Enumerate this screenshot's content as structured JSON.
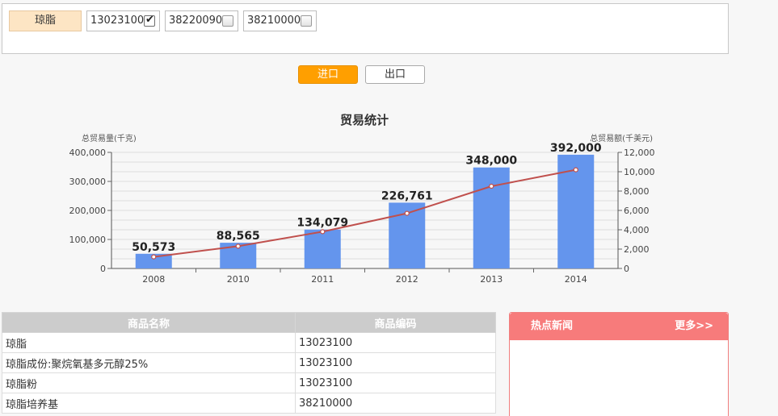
{
  "filter": {
    "category": "琼脂",
    "codes": [
      {
        "code": "13023100",
        "checked": true
      },
      {
        "code": "38220090",
        "checked": false
      },
      {
        "code": "38210000",
        "checked": false
      }
    ]
  },
  "buttons": {
    "import_label": "进口",
    "export_label": "出口"
  },
  "chart_data": {
    "type": "bar",
    "title": "贸易统计",
    "ylabel": "总贸易量(千克)",
    "y2label": "总贸易额(千美元)",
    "categories": [
      "2008",
      "2010",
      "2011",
      "2012",
      "2013",
      "2014"
    ],
    "series": [
      {
        "name": "总贸易量(千克)",
        "type": "bar",
        "axis": "left",
        "color": "#6495ed",
        "values": [
          50573,
          88565,
          134079,
          226761,
          348000,
          392000
        ]
      },
      {
        "name": "总贸易额(千美元)",
        "type": "line",
        "axis": "right",
        "color": "#c0504d",
        "values": [
          1200,
          2300,
          3800,
          5700,
          8500,
          10200
        ]
      }
    ],
    "data_labels": [
      "50,573",
      "88,565",
      "134,079",
      "226,761",
      "348,000",
      "392,000"
    ],
    "ylim": [
      0,
      400000
    ],
    "y2lim": [
      0,
      12000
    ],
    "y_ticks": [
      "0",
      "100,000",
      "200,000",
      "300,000",
      "400,000"
    ],
    "y2_ticks": [
      "0",
      "2,000",
      "4,000",
      "6,000",
      "8,000",
      "10,000",
      "12,000"
    ],
    "grid": true
  },
  "table": {
    "headers": [
      "商品名称",
      "商品编码"
    ],
    "rows": [
      {
        "name": "琼脂",
        "code": "13023100"
      },
      {
        "name": "琼脂成份:聚烷氧基多元醇25%",
        "code": "13023100"
      },
      {
        "name": "琼脂粉",
        "code": "13023100"
      },
      {
        "name": "琼脂培养基",
        "code": "38210000"
      }
    ]
  },
  "news": {
    "title": "热点新闻",
    "more": "更多>>"
  }
}
